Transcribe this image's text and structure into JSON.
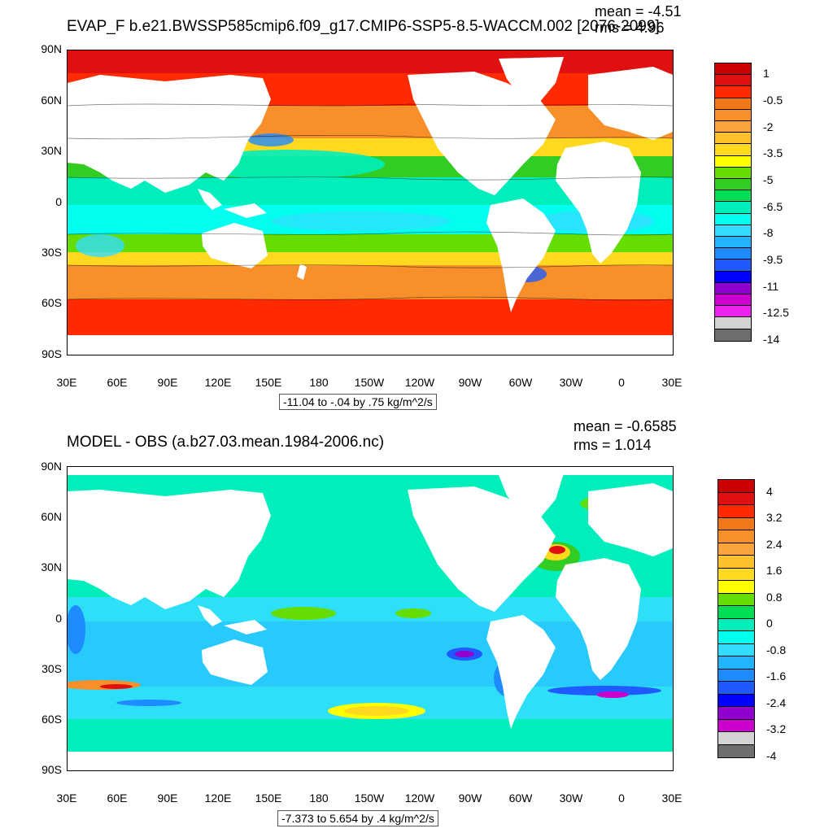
{
  "lat_labels": [
    "90N",
    "60N",
    "30N",
    "0",
    "30S",
    "60S",
    "90S"
  ],
  "lon_labels": [
    "30E",
    "60E",
    "90E",
    "120E",
    "150E",
    "180",
    "150W",
    "120W",
    "90W",
    "60W",
    "30W",
    "0",
    "30E"
  ],
  "panels": [
    {
      "title": "EVAP_F b.e21.BWSSP585cmip6.f09_g17.CMIP6-SSP5-8.5-WACCM.002 [2076-2099]",
      "mean": "mean = -4.51",
      "rms": "rms = 4.96",
      "caption": "-11.04 to -.04 by .75 kg/m^2/s",
      "colorbar": {
        "labels": [
          "1",
          "-0.5",
          "-2",
          "-3.5",
          "-5",
          "-6.5",
          "-8",
          "-9.5",
          "-11",
          "-12.5",
          "-14"
        ],
        "colors": [
          "#cc0000",
          "#e01010",
          "#ff2a00",
          "#f07818",
          "#f7902a",
          "#fba33c",
          "#ffc12a",
          "#ffd820",
          "#ffff00",
          "#66dd00",
          "#33cc22",
          "#00dd55",
          "#00eebb",
          "#00ffee",
          "#33ddff",
          "#22b4ff",
          "#1e8cff",
          "#1e5aff",
          "#0000ff",
          "#9100cc",
          "#cc00cc",
          "#ee22ee",
          "#d3d3d3",
          "#6e6e6e"
        ]
      }
    },
    {
      "title": "MODEL - OBS (a.b27.03.mean.1984-2006.nc)",
      "mean": "mean = -0.6585",
      "rms": "rms = 1.014",
      "caption": "-7.373 to 5.654 by .4 kg/m^2/s",
      "colorbar": {
        "labels": [
          "4",
          "3.2",
          "2.4",
          "1.6",
          "0.8",
          "0",
          "-0.8",
          "-1.6",
          "-2.4",
          "-3.2",
          "-4"
        ],
        "colors": [
          "#cc0000",
          "#e01010",
          "#ff2a00",
          "#f07818",
          "#f7902a",
          "#fba33c",
          "#ffc12a",
          "#ffd820",
          "#ffff00",
          "#66dd00",
          "#00dd55",
          "#00eebb",
          "#00ffee",
          "#33ddff",
          "#22b4ff",
          "#1e8cff",
          "#1e5aff",
          "#0000ff",
          "#9100cc",
          "#cc00cc",
          "#d3d3d3",
          "#6e6e6e"
        ]
      }
    }
  ]
}
